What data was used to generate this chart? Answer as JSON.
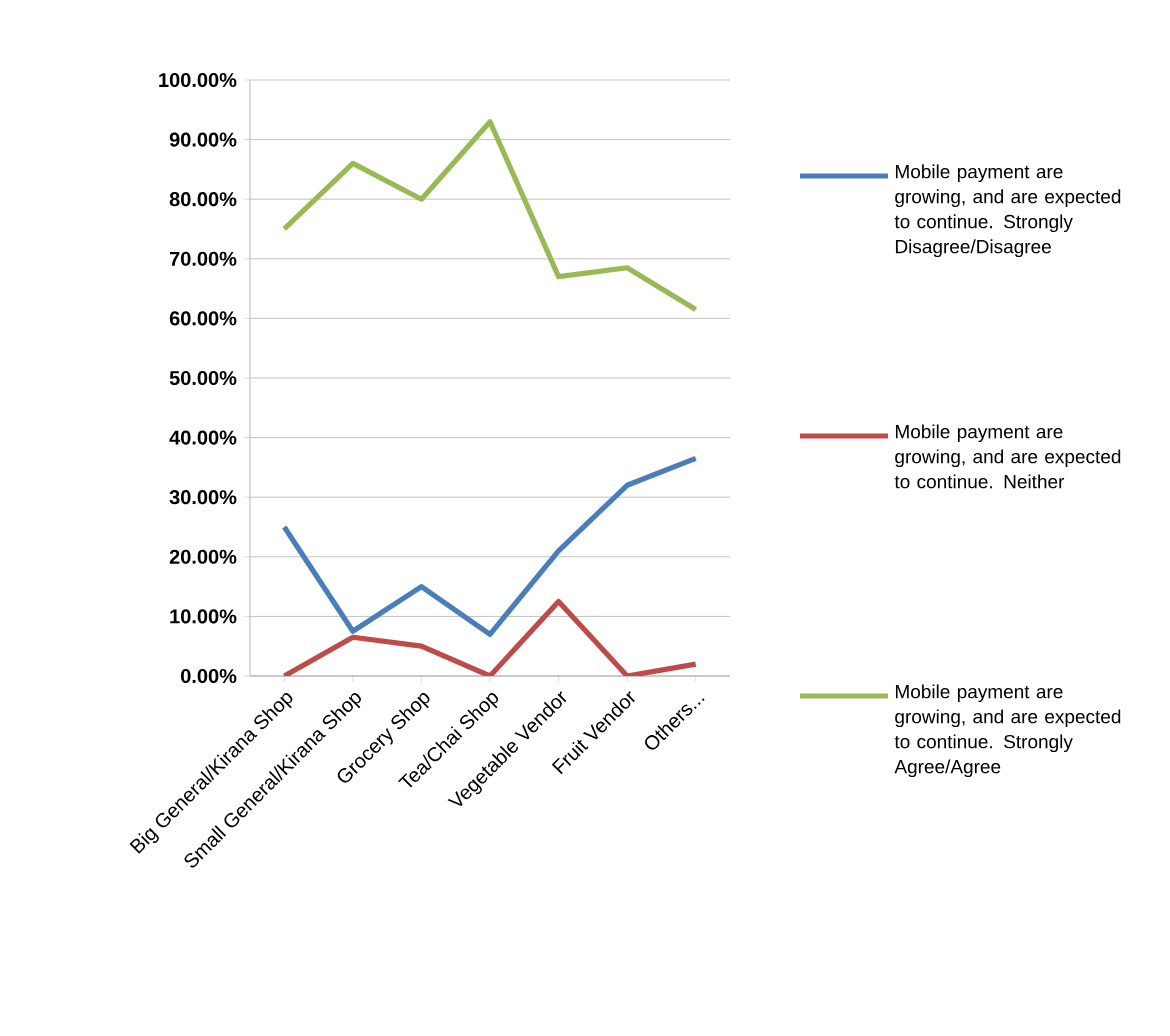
{
  "chart_data": {
    "type": "line",
    "categories": [
      "Big General/Kirana Shop",
      "Small General/Kirana Shop",
      "Grocery Shop",
      "Tea/Chai Shop",
      "Vegetable Vendor",
      "Fruit Vendor",
      "Others..."
    ],
    "series": [
      {
        "name": "Mobile payment are growing, and are expected to continue. Strongly Disagree/Disagree",
        "color": "#4a7ebb",
        "values": [
          25,
          7.5,
          15,
          7,
          21,
          32,
          36.5
        ]
      },
      {
        "name": "Mobile payment are growing, and are expected to continue. Neither",
        "color": "#be4b48",
        "values": [
          0,
          6.5,
          5,
          0,
          12.5,
          0,
          2
        ]
      },
      {
        "name": "Mobile payment are growing, and are expected to continue. Strongly Agree/Agree",
        "color": "#98b954",
        "values": [
          75,
          86,
          80,
          93,
          67,
          68.5,
          61.5
        ]
      }
    ],
    "ylim": [
      0,
      100
    ],
    "yticks": [
      {
        "value": 0,
        "label": "0.00%"
      },
      {
        "value": 10,
        "label": "10.00%"
      },
      {
        "value": 20,
        "label": "20.00%"
      },
      {
        "value": 30,
        "label": "30.00%"
      },
      {
        "value": 40,
        "label": "40.00%"
      },
      {
        "value": 50,
        "label": "50.00%"
      },
      {
        "value": 60,
        "label": "60.00%"
      },
      {
        "value": 70,
        "label": "70.00%"
      },
      {
        "value": 80,
        "label": "80.00%"
      },
      {
        "value": 90,
        "label": "90.00%"
      },
      {
        "value": 100,
        "label": "100.00%"
      }
    ],
    "grid": "y",
    "legend": "right",
    "marker": "none",
    "line_style": "solid"
  }
}
